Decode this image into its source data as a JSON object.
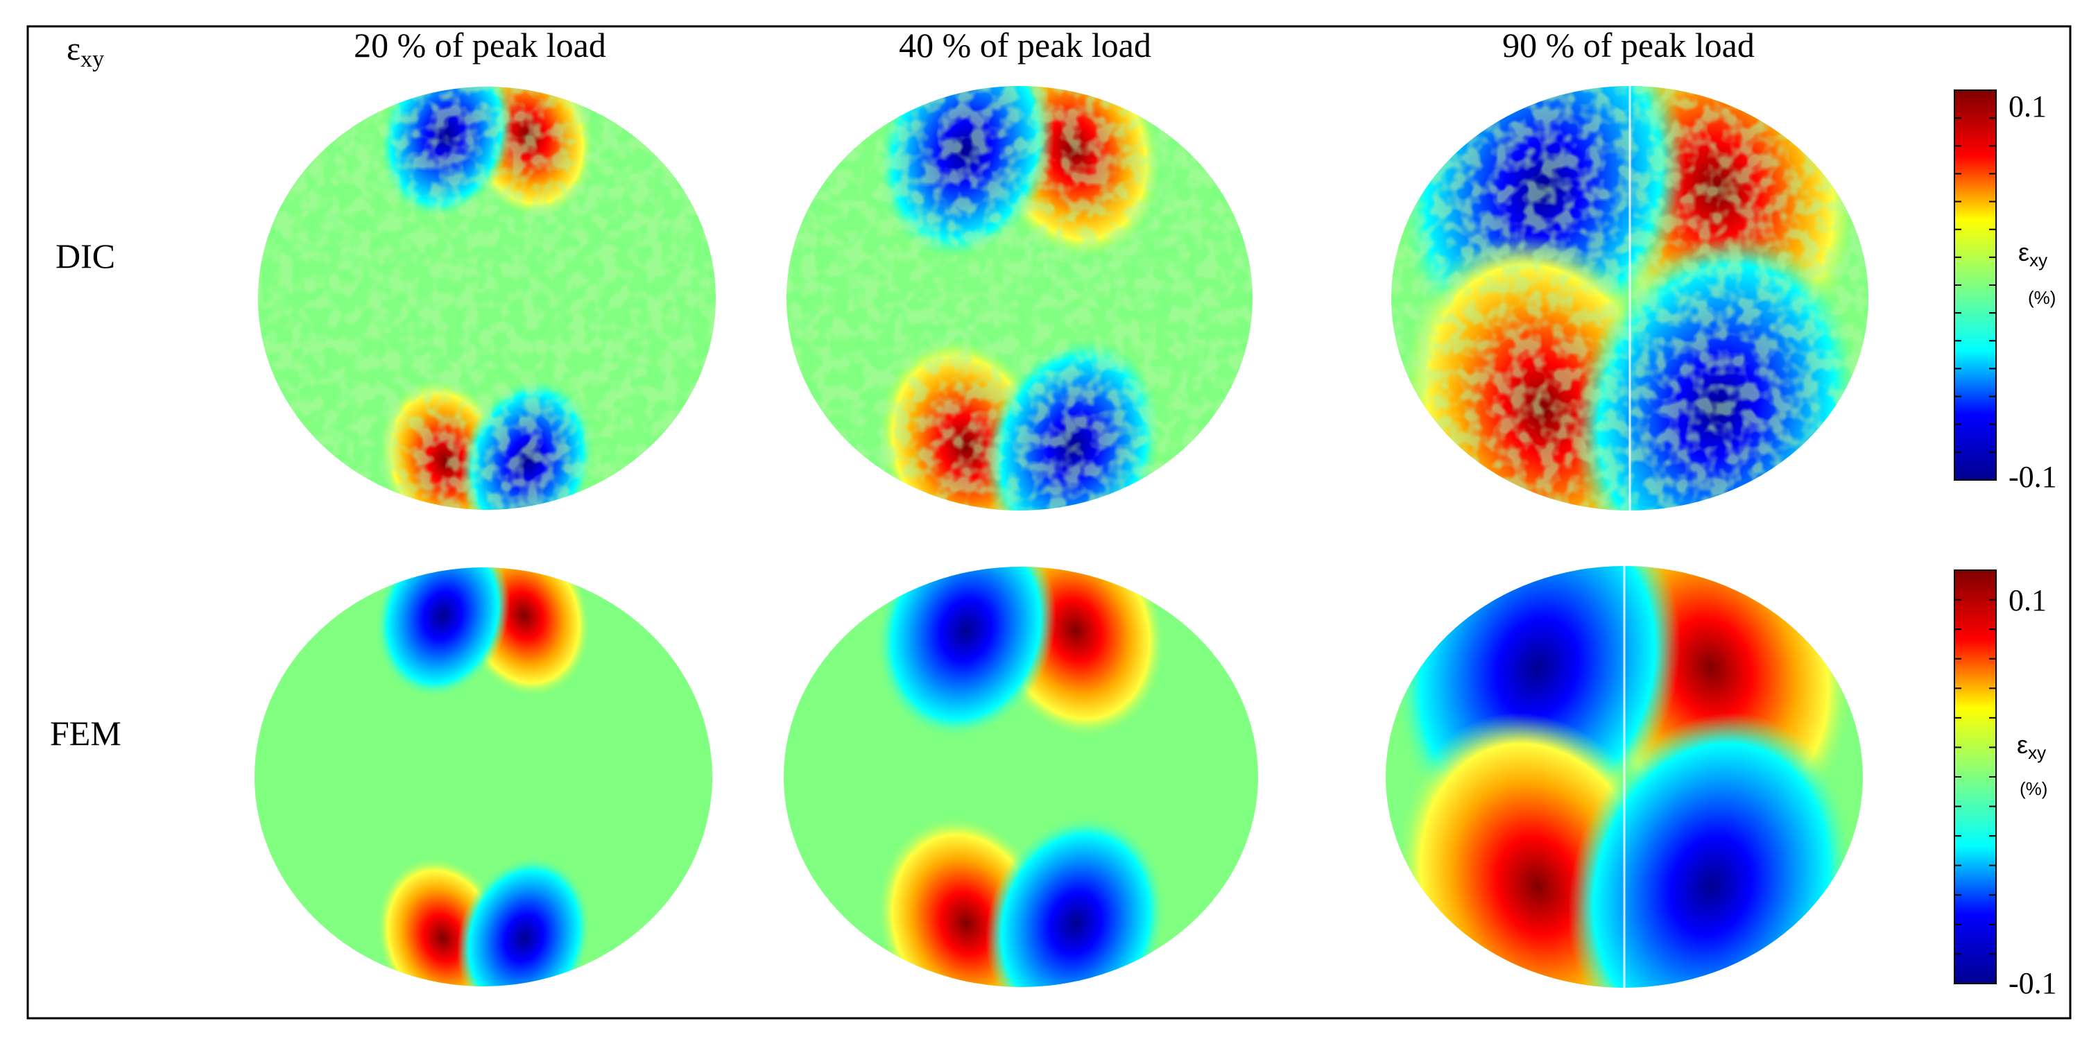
{
  "corner_label": {
    "symbol": "ε",
    "subscript": "xy"
  },
  "columns": [
    {
      "label": "20 % of peak load"
    },
    {
      "label": "40 % of peak load"
    },
    {
      "label": "90 % of peak load"
    }
  ],
  "rows": [
    {
      "label": "DIC"
    },
    {
      "label": "FEM"
    }
  ],
  "colorbars": [
    {
      "max_label": "0.1",
      "min_label": "-0.1",
      "symbol": "ε",
      "subscript": "xy",
      "unit": "(%)"
    },
    {
      "max_label": "0.1",
      "min_label": "-0.1",
      "symbol": "ε",
      "subscript": "xy",
      "unit": "(%)"
    }
  ],
  "colormap": [
    "#00008f",
    "#0000ff",
    "#00ffff",
    "#80ff80",
    "#ffff00",
    "#ff0000",
    "#800000"
  ],
  "background_color": "#80ff80",
  "load_levels": [
    0.2,
    0.4,
    0.9
  ]
}
